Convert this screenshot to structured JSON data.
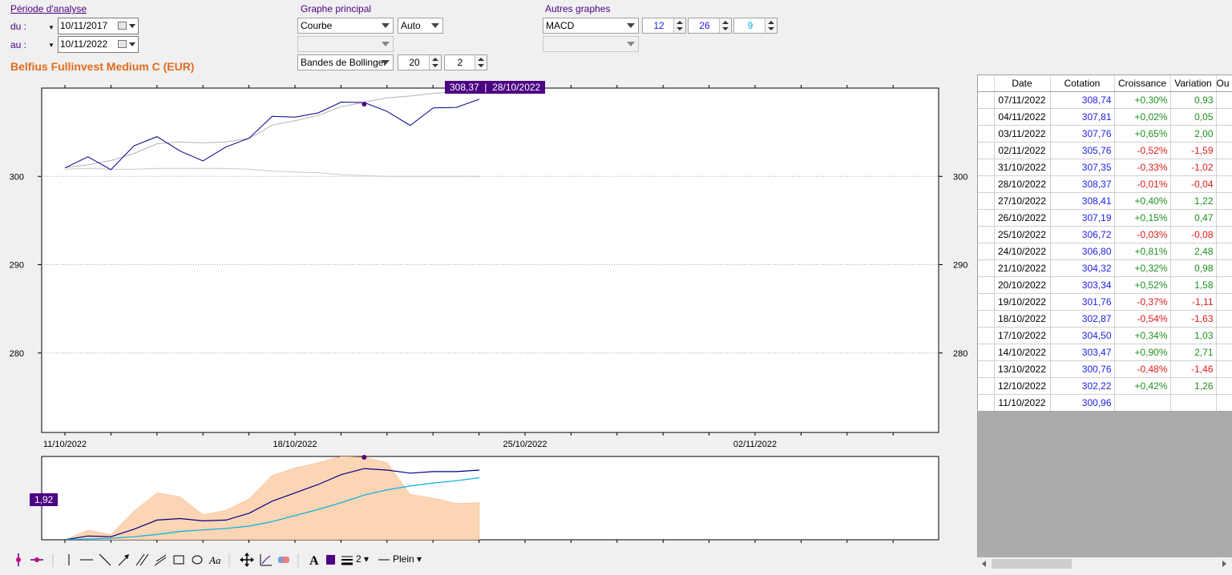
{
  "period": {
    "title": "Période d'analyse",
    "from_label": "du :",
    "to_label": "au :",
    "from_value": "10/11/2017",
    "to_value": "10/11/2022"
  },
  "fund_title": "Belfius Fullinvest Medium C  (EUR)",
  "main_graph": {
    "title": "Graphe principal",
    "type": "Courbe",
    "scale": "Auto",
    "secondary": "",
    "overlay": "Bandes de Bollinger",
    "overlay_p1": "20",
    "overlay_p2": "2"
  },
  "other_graphs": {
    "title": "Autres graphes",
    "indicator": "MACD",
    "p1": "12",
    "p2": "26",
    "p3": "9",
    "second": ""
  },
  "tooltip": {
    "value": "308,37",
    "date": "28/10/2022"
  },
  "macd_tooltip": "1,92",
  "colors": {
    "accent": "#4b0082",
    "price_line": "#00008b",
    "macd_signal": "#00b0e0",
    "macd_hist": "#fcd5b4",
    "positive": "#1f8f1f",
    "negative": "#e01b1b",
    "title": "#e06c1e"
  },
  "chart_data": [
    {
      "type": "line",
      "series": [
        {
          "x": [
            "11/10/2022",
            "12/10/2022",
            "13/10/2022",
            "14/10/2022",
            "17/10/2022",
            "18/10/2022",
            "19/10/2022",
            "20/10/2022",
            "21/10/2022",
            "24/10/2022",
            "25/10/2022",
            "26/10/2022",
            "27/10/2022",
            "28/10/2022",
            "31/10/2022",
            "02/11/2022",
            "03/11/2022",
            "04/11/2022",
            "07/11/2022"
          ],
          "values": [
            300.96,
            302.22,
            300.76,
            303.47,
            304.5,
            302.87,
            301.76,
            303.34,
            304.32,
            306.8,
            306.72,
            307.19,
            308.41,
            308.37,
            307.35,
            305.76,
            307.76,
            307.81,
            308.74
          ]
        },
        {
          "x": [
            "11/10/2022",
            "12/10/2022",
            "13/10/2022",
            "14/10/2022",
            "17/10/2022",
            "18/10/2022",
            "19/10/2022",
            "20/10/2022",
            "21/10/2022",
            "24/10/2022",
            "25/10/2022",
            "26/10/2022",
            "27/10/2022",
            "28/10/2022",
            "31/10/2022",
            "02/11/2022",
            "03/11/2022",
            "04/11/2022",
            "07/11/2022"
          ],
          "values": [
            301.0,
            301.3,
            301.8,
            302.6,
            303.7,
            303.9,
            303.8,
            303.9,
            304.3,
            305.8,
            306.3,
            306.9,
            307.9,
            308.4,
            308.9,
            309.1,
            309.4,
            309.6,
            309.8
          ]
        },
        {
          "x": [
            "11/10/2022",
            "12/10/2022",
            "13/10/2022",
            "14/10/2022",
            "17/10/2022",
            "18/10/2022",
            "19/10/2022",
            "20/10/2022",
            "21/10/2022",
            "24/10/2022",
            "25/10/2022",
            "26/10/2022",
            "27/10/2022",
            "28/10/2022",
            "31/10/2022",
            "02/11/2022",
            "03/11/2022",
            "04/11/2022",
            "07/11/2022"
          ],
          "values": [
            300.8,
            300.9,
            300.8,
            300.8,
            300.9,
            300.9,
            300.9,
            300.9,
            300.8,
            300.6,
            300.5,
            300.4,
            300.2,
            300.1,
            300.0,
            300.0,
            300.0,
            300.0,
            300.0
          ]
        }
      ],
      "yticks": [
        "300",
        "290",
        "280"
      ],
      "ylim": [
        271,
        310
      ],
      "xticks": [
        "11/10/2022",
        "18/10/2022",
        "25/10/2022",
        "02/11/2022"
      ]
    },
    {
      "type": "area",
      "series": [
        {
          "values": [
            0.0,
            0.65,
            0.35,
            1.9,
            3.1,
            2.85,
            1.65,
            1.95,
            2.7,
            4.25,
            4.75,
            5.1,
            5.5,
            5.45,
            5.1,
            3.0,
            2.75,
            2.4,
            2.45
          ]
        },
        {
          "values": [
            0.0,
            0.25,
            0.2,
            0.7,
            1.3,
            1.4,
            1.25,
            1.3,
            1.75,
            2.55,
            3.1,
            3.65,
            4.3,
            4.7,
            4.6,
            4.4,
            4.5,
            4.5,
            4.6
          ]
        },
        {
          "values": [
            0.0,
            0.05,
            0.1,
            0.2,
            0.35,
            0.55,
            0.65,
            0.75,
            0.9,
            1.2,
            1.6,
            2.0,
            2.45,
            2.95,
            3.3,
            3.55,
            3.75,
            3.9,
            4.1
          ]
        }
      ],
      "ylim": [
        0,
        5.5
      ]
    }
  ],
  "table": {
    "columns": [
      "Date",
      "Cotation",
      "Croissance",
      "Variation",
      "Ou"
    ],
    "rows": [
      [
        "07/11/2022",
        "308,74",
        "+0,30%",
        "0,93"
      ],
      [
        "04/11/2022",
        "307,81",
        "+0,02%",
        "0,05"
      ],
      [
        "03/11/2022",
        "307,76",
        "+0,65%",
        "2,00"
      ],
      [
        "02/11/2022",
        "305,76",
        "-0,52%",
        "-1,59"
      ],
      [
        "31/10/2022",
        "307,35",
        "-0,33%",
        "-1,02"
      ],
      [
        "28/10/2022",
        "308,37",
        "-0,01%",
        "-0,04"
      ],
      [
        "27/10/2022",
        "308,41",
        "+0,40%",
        "1,22"
      ],
      [
        "26/10/2022",
        "307,19",
        "+0,15%",
        "0,47"
      ],
      [
        "25/10/2022",
        "306,72",
        "-0,03%",
        "-0,08"
      ],
      [
        "24/10/2022",
        "306,80",
        "+0,81%",
        "2,48"
      ],
      [
        "21/10/2022",
        "304,32",
        "+0,32%",
        "0,98"
      ],
      [
        "20/10/2022",
        "303,34",
        "+0,52%",
        "1,58"
      ],
      [
        "19/10/2022",
        "301,76",
        "-0,37%",
        "-1,11"
      ],
      [
        "18/10/2022",
        "302,87",
        "-0,54%",
        "-1,63"
      ],
      [
        "17/10/2022",
        "304,50",
        "+0,34%",
        "1,03"
      ],
      [
        "14/10/2022",
        "303,47",
        "+0,90%",
        "2,71"
      ],
      [
        "13/10/2022",
        "300,76",
        "-0,48%",
        "-1,46"
      ],
      [
        "12/10/2022",
        "302,22",
        "+0,42%",
        "1,26"
      ],
      [
        "11/10/2022",
        "300,96",
        "",
        ""
      ]
    ]
  },
  "toolbar": {
    "line_width": "2",
    "line_style": "Plein"
  }
}
